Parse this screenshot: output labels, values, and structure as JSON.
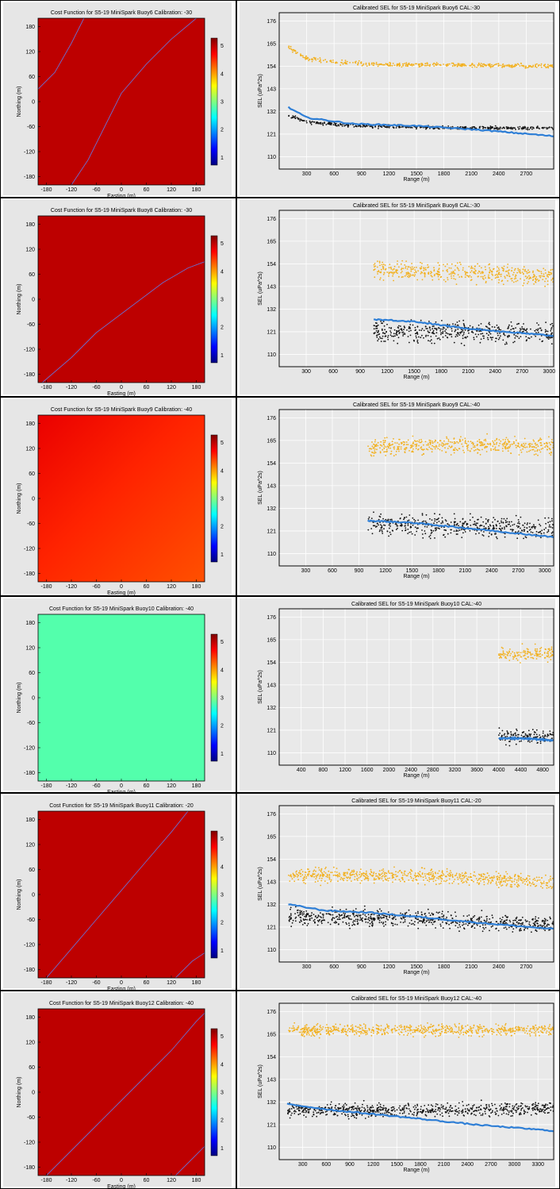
{
  "chart_data": [
    {
      "type": "heatmap",
      "title": "Cost Function for S5-19 MiniSpark Buoy6 Calibration: -30",
      "xlabel": "Easting (m)",
      "ylabel": "Northing (m)",
      "xticks": [
        "-180",
        "-120",
        "-60",
        "0",
        "60",
        "120",
        "180"
      ],
      "yticks": [
        "180",
        "120",
        "60",
        "0",
        "-60",
        "-120",
        "-180"
      ],
      "colorbar_ticks": [
        "5",
        "4",
        "3",
        "2",
        "1"
      ],
      "clim": [
        1,
        5
      ],
      "xlim": [
        -200,
        200
      ],
      "ylim": [
        -200,
        200
      ],
      "fill_value": 5,
      "fill": "uniform",
      "contour_lines": [
        [
          [
            -200,
            30
          ],
          [
            -160,
            70
          ],
          [
            -120,
            140
          ],
          [
            -90,
            200
          ]
        ],
        [
          [
            -120,
            -200
          ],
          [
            -80,
            -140
          ],
          [
            -40,
            -60
          ],
          [
            0,
            20
          ],
          [
            60,
            90
          ],
          [
            120,
            150
          ],
          [
            180,
            200
          ]
        ]
      ]
    },
    {
      "type": "scatter",
      "title": "Calibrated SEL for S5-19 MiniSpark Buoy6 CAL:-30",
      "xlabel": "Range (m)",
      "ylabel": "SEL (uPa^2s)",
      "xticks": [
        "300",
        "600",
        "900",
        "1200",
        "1500",
        "1800",
        "2100",
        "2400",
        "2700"
      ],
      "yticks": [
        "176",
        "165",
        "154",
        "143",
        "132",
        "121",
        "110"
      ],
      "xlim": [
        0,
        3000
      ],
      "ylim": [
        104,
        180
      ],
      "series": [
        {
          "color": "#f2b01e",
          "x_start": 100,
          "x_end": 3000,
          "trend": [
            [
              100,
              163
            ],
            [
              300,
              158
            ],
            [
              600,
              156
            ],
            [
              1000,
              155
            ],
            [
              2000,
              154.5
            ],
            [
              3000,
              154
            ]
          ],
          "spread": 1.0,
          "shape": "dot"
        },
        {
          "color": "#111111",
          "x_start": 100,
          "x_end": 3000,
          "trend": [
            [
              100,
              130
            ],
            [
              300,
              127
            ],
            [
              800,
              125
            ],
            [
              2000,
              124
            ],
            [
              3000,
              124
            ]
          ],
          "spread": 0.8,
          "shape": "dot"
        },
        {
          "color": "#2f7fd6",
          "x_start": 100,
          "x_end": 3000,
          "trend": [
            [
              100,
              134
            ],
            [
              300,
              129
            ],
            [
              800,
              126
            ],
            [
              1500,
              125
            ],
            [
              2200,
              123
            ],
            [
              3000,
              120
            ]
          ],
          "spread": 0,
          "shape": "line"
        }
      ]
    },
    {
      "type": "heatmap",
      "title": "Cost Function for S5-19 MiniSpark Buoy8 Calibration: -30",
      "xlabel": "Easting (m)",
      "ylabel": "Northing (m)",
      "xticks": [
        "-180",
        "-120",
        "-60",
        "0",
        "60",
        "120",
        "180"
      ],
      "yticks": [
        "180",
        "120",
        "60",
        "0",
        "-60",
        "-120",
        "-180"
      ],
      "colorbar_ticks": [
        "5",
        "4",
        "3",
        "2",
        "1"
      ],
      "clim": [
        1,
        5
      ],
      "xlim": [
        -200,
        200
      ],
      "ylim": [
        -200,
        200
      ],
      "fill_value": 5,
      "fill": "uniform",
      "contour_lines": [
        [
          [
            -190,
            -200
          ],
          [
            -120,
            -140
          ],
          [
            -60,
            -80
          ],
          [
            20,
            -20
          ],
          [
            100,
            40
          ],
          [
            160,
            75
          ],
          [
            200,
            90
          ]
        ]
      ]
    },
    {
      "type": "scatter",
      "title": "Calibrated SEL for S5-19 MiniSpark Buoy8 CAL:-30",
      "xlabel": "Range (m)",
      "ylabel": "SEL (uPa^2s)",
      "xticks": [
        "300",
        "600",
        "900",
        "1200",
        "1500",
        "1800",
        "2100",
        "2400",
        "2700",
        "3000"
      ],
      "yticks": [
        "176",
        "165",
        "154",
        "143",
        "132",
        "121",
        "110"
      ],
      "xlim": [
        0,
        3050
      ],
      "ylim": [
        104,
        180
      ],
      "series": [
        {
          "color": "#f2b01e",
          "x_start": 1050,
          "x_end": 3050,
          "trend": [
            [
              1050,
              151
            ],
            [
              1800,
              150
            ],
            [
              3050,
              148
            ]
          ],
          "spread": 4.5,
          "shape": "dot"
        },
        {
          "color": "#111111",
          "x_start": 1050,
          "x_end": 3050,
          "trend": [
            [
              1050,
              121
            ],
            [
              1800,
              121
            ],
            [
              3050,
              120
            ]
          ],
          "spread": 5,
          "shape": "dot"
        },
        {
          "color": "#2f7fd6",
          "x_start": 1050,
          "x_end": 3050,
          "trend": [
            [
              1050,
              127
            ],
            [
              1500,
              126
            ],
            [
              2000,
              123
            ],
            [
              2500,
              121
            ],
            [
              3050,
              119
            ]
          ],
          "spread": 0,
          "shape": "line"
        }
      ]
    },
    {
      "type": "heatmap",
      "title": "Cost Function for S5-19 MiniSpark Buoy9 Calibration: -40",
      "xlabel": "Easting (m)",
      "ylabel": "Northing (m)",
      "xticks": [
        "-180",
        "-120",
        "-60",
        "0",
        "60",
        "120",
        "180"
      ],
      "yticks": [
        "180",
        "120",
        "60",
        "0",
        "-60",
        "-120",
        "-180"
      ],
      "colorbar_ticks": [
        "5",
        "4",
        "3",
        "2",
        "1"
      ],
      "clim": [
        1,
        5
      ],
      "xlim": [
        -200,
        200
      ],
      "ylim": [
        -200,
        200
      ],
      "fill_value": 4.8,
      "fill": "gradient",
      "contour_lines": []
    },
    {
      "type": "scatter",
      "title": "Calibrated SEL for S5-19 MiniSpark Buoy9 CAL:-40",
      "xlabel": "Range (m)",
      "ylabel": "SEL (uPa^2s)",
      "xticks": [
        "300",
        "600",
        "900",
        "1200",
        "1500",
        "1800",
        "2100",
        "2400",
        "2700",
        "3000"
      ],
      "yticks": [
        "176",
        "165",
        "154",
        "143",
        "132",
        "121",
        "110"
      ],
      "xlim": [
        0,
        3100
      ],
      "ylim": [
        104,
        180
      ],
      "series": [
        {
          "color": "#f2b01e",
          "x_start": 1000,
          "x_end": 3100,
          "trend": [
            [
              1000,
              162
            ],
            [
              2000,
              163
            ],
            [
              3100,
              162
            ]
          ],
          "spread": 4,
          "shape": "dot"
        },
        {
          "color": "#111111",
          "x_start": 1000,
          "x_end": 3100,
          "trend": [
            [
              1000,
              125
            ],
            [
              2000,
              123
            ],
            [
              3100,
              122
            ]
          ],
          "spread": 5,
          "shape": "dot"
        },
        {
          "color": "#2f7fd6",
          "x_start": 1000,
          "x_end": 3100,
          "trend": [
            [
              1000,
              126
            ],
            [
              1500,
              125
            ],
            [
              2200,
              122
            ],
            [
              3100,
              118
            ]
          ],
          "spread": 0,
          "shape": "line"
        }
      ]
    },
    {
      "type": "heatmap",
      "title": "Cost Function for S5-19 MiniSpark Buoy10 Calibration: -40",
      "xlabel": "Easting (m)",
      "ylabel": "Northing (m)",
      "xticks": [
        "-180",
        "-120",
        "-60",
        "0",
        "60",
        "120",
        "180"
      ],
      "yticks": [
        "180",
        "120",
        "60",
        "0",
        "-60",
        "-120",
        "-180"
      ],
      "colorbar_ticks": [
        "5",
        "4",
        "3",
        "2",
        "1"
      ],
      "clim": [
        1,
        5
      ],
      "xlim": [
        -200,
        200
      ],
      "ylim": [
        -200,
        200
      ],
      "fill_value": 2.8,
      "fill": "uniform",
      "contour_lines": []
    },
    {
      "type": "scatter",
      "title": "Calibrated SEL for S5-19 MiniSpark Buoy10 CAL:-40",
      "xlabel": "Range (m)",
      "ylabel": "SEL (uPa^2s)",
      "xticks": [
        "400",
        "800",
        "1200",
        "1600",
        "2000",
        "2400",
        "2800",
        "3200",
        "3600",
        "4000",
        "4400",
        "4800"
      ],
      "yticks": [
        "176",
        "165",
        "154",
        "143",
        "132",
        "121",
        "110"
      ],
      "xlim": [
        0,
        5000
      ],
      "ylim": [
        104,
        180
      ],
      "series": [
        {
          "color": "#f2b01e",
          "x_start": 4000,
          "x_end": 5000,
          "trend": [
            [
              4000,
              158
            ],
            [
              5000,
              158
            ]
          ],
          "spread": 3.5,
          "shape": "dot"
        },
        {
          "color": "#111111",
          "x_start": 4000,
          "x_end": 5000,
          "trend": [
            [
              4000,
              118
            ],
            [
              5000,
              118
            ]
          ],
          "spread": 3.5,
          "shape": "dot"
        },
        {
          "color": "#2f7fd6",
          "x_start": 4000,
          "x_end": 5000,
          "trend": [
            [
              4000,
              117
            ],
            [
              4500,
              117
            ],
            [
              5000,
              116
            ]
          ],
          "spread": 0,
          "shape": "line"
        }
      ]
    },
    {
      "type": "heatmap",
      "title": "Cost Function for S5-19 MiniSpark Buoy11 Calibration: -20",
      "xlabel": "Easting (m)",
      "ylabel": "Northing (m)",
      "xticks": [
        "-180",
        "-120",
        "-60",
        "0",
        "60",
        "120",
        "180"
      ],
      "yticks": [
        "180",
        "120",
        "60",
        "0",
        "-60",
        "-120",
        "-180"
      ],
      "colorbar_ticks": [
        "5",
        "4",
        "3",
        "2",
        "1"
      ],
      "clim": [
        1,
        5
      ],
      "xlim": [
        -200,
        200
      ],
      "ylim": [
        -200,
        200
      ],
      "fill_value": 5,
      "fill": "uniform",
      "contour_lines": [
        [
          [
            -180,
            -200
          ],
          [
            -120,
            -130
          ],
          [
            -60,
            -60
          ],
          [
            0,
            10
          ],
          [
            60,
            80
          ],
          [
            120,
            150
          ],
          [
            160,
            200
          ]
        ],
        [
          [
            130,
            -200
          ],
          [
            170,
            -160
          ],
          [
            200,
            -140
          ]
        ]
      ]
    },
    {
      "type": "scatter",
      "title": "Calibrated SEL for S5-19 MiniSpark Buoy11 CAL:-20",
      "xlabel": "Range (m)",
      "ylabel": "SEL (uPa^2s)",
      "xticks": [
        "300",
        "600",
        "900",
        "1200",
        "1500",
        "1800",
        "2100",
        "2400",
        "2700"
      ],
      "yticks": [
        "176",
        "165",
        "154",
        "143",
        "132",
        "121",
        "110"
      ],
      "xlim": [
        0,
        3000
      ],
      "ylim": [
        104,
        180
      ],
      "series": [
        {
          "color": "#f2b01e",
          "x_start": 100,
          "x_end": 3000,
          "trend": [
            [
              100,
              146
            ],
            [
              1500,
              146
            ],
            [
              3000,
              143
            ]
          ],
          "spread": 3.5,
          "shape": "dot"
        },
        {
          "color": "#111111",
          "x_start": 100,
          "x_end": 3000,
          "trend": [
            [
              100,
              126
            ],
            [
              1500,
              125
            ],
            [
              3000,
              122
            ]
          ],
          "spread": 4,
          "shape": "dot"
        },
        {
          "color": "#2f7fd6",
          "x_start": 100,
          "x_end": 3000,
          "trend": [
            [
              100,
              132
            ],
            [
              500,
              129
            ],
            [
              1000,
              128
            ],
            [
              1500,
              126
            ],
            [
              2200,
              123
            ],
            [
              3000,
              120
            ]
          ],
          "spread": 0,
          "shape": "line"
        }
      ]
    },
    {
      "type": "heatmap",
      "title": "Cost Function for S5-19 MiniSpark Buoy12 Calibration: -40",
      "xlabel": "Easting (m)",
      "ylabel": "Northing (m)",
      "xticks": [
        "-180",
        "-120",
        "-60",
        "0",
        "60",
        "120",
        "180"
      ],
      "yticks": [
        "180",
        "120",
        "60",
        "0",
        "-60",
        "-120",
        "-180"
      ],
      "colorbar_ticks": [
        "5",
        "4",
        "3",
        "2",
        "1"
      ],
      "clim": [
        1,
        5
      ],
      "xlim": [
        -200,
        200
      ],
      "ylim": [
        -200,
        200
      ],
      "fill_value": 5,
      "fill": "uniform",
      "contour_lines": [
        [
          [
            -180,
            -200
          ],
          [
            -120,
            -140
          ],
          [
            -60,
            -80
          ],
          [
            0,
            -20
          ],
          [
            60,
            40
          ],
          [
            120,
            100
          ],
          [
            180,
            170
          ],
          [
            200,
            190
          ]
        ],
        [
          [
            130,
            -200
          ],
          [
            170,
            -160
          ],
          [
            200,
            -130
          ]
        ]
      ]
    },
    {
      "type": "scatter",
      "title": "Calibrated SEL for S5-19 MiniSpark Buoy12 CAL:-40",
      "xlabel": "Range (m)",
      "ylabel": "SEL (uPa^2s)",
      "xticks": [
        "300",
        "600",
        "900",
        "1200",
        "1500",
        "1800",
        "2100",
        "2400",
        "2700",
        "3000",
        "3300"
      ],
      "yticks": [
        "176",
        "165",
        "154",
        "143",
        "132",
        "121",
        "110"
      ],
      "xlim": [
        0,
        3500
      ],
      "ylim": [
        104,
        180
      ],
      "series": [
        {
          "color": "#f2b01e",
          "x_start": 100,
          "x_end": 3500,
          "trend": [
            [
              100,
              167
            ],
            [
              1700,
              167
            ],
            [
              3500,
              167
            ]
          ],
          "spread": 2.8,
          "shape": "dot"
        },
        {
          "color": "#111111",
          "x_start": 100,
          "x_end": 3500,
          "trend": [
            [
              100,
              128
            ],
            [
              1700,
              128
            ],
            [
              3500,
              129
            ]
          ],
          "spread": 3.2,
          "shape": "dot"
        },
        {
          "color": "#2f7fd6",
          "x_start": 100,
          "x_end": 3500,
          "trend": [
            [
              100,
              131
            ],
            [
              700,
              128
            ],
            [
              1500,
              125
            ],
            [
              2500,
              121
            ],
            [
              3500,
              118
            ]
          ],
          "spread": 0,
          "shape": "line"
        }
      ]
    }
  ]
}
